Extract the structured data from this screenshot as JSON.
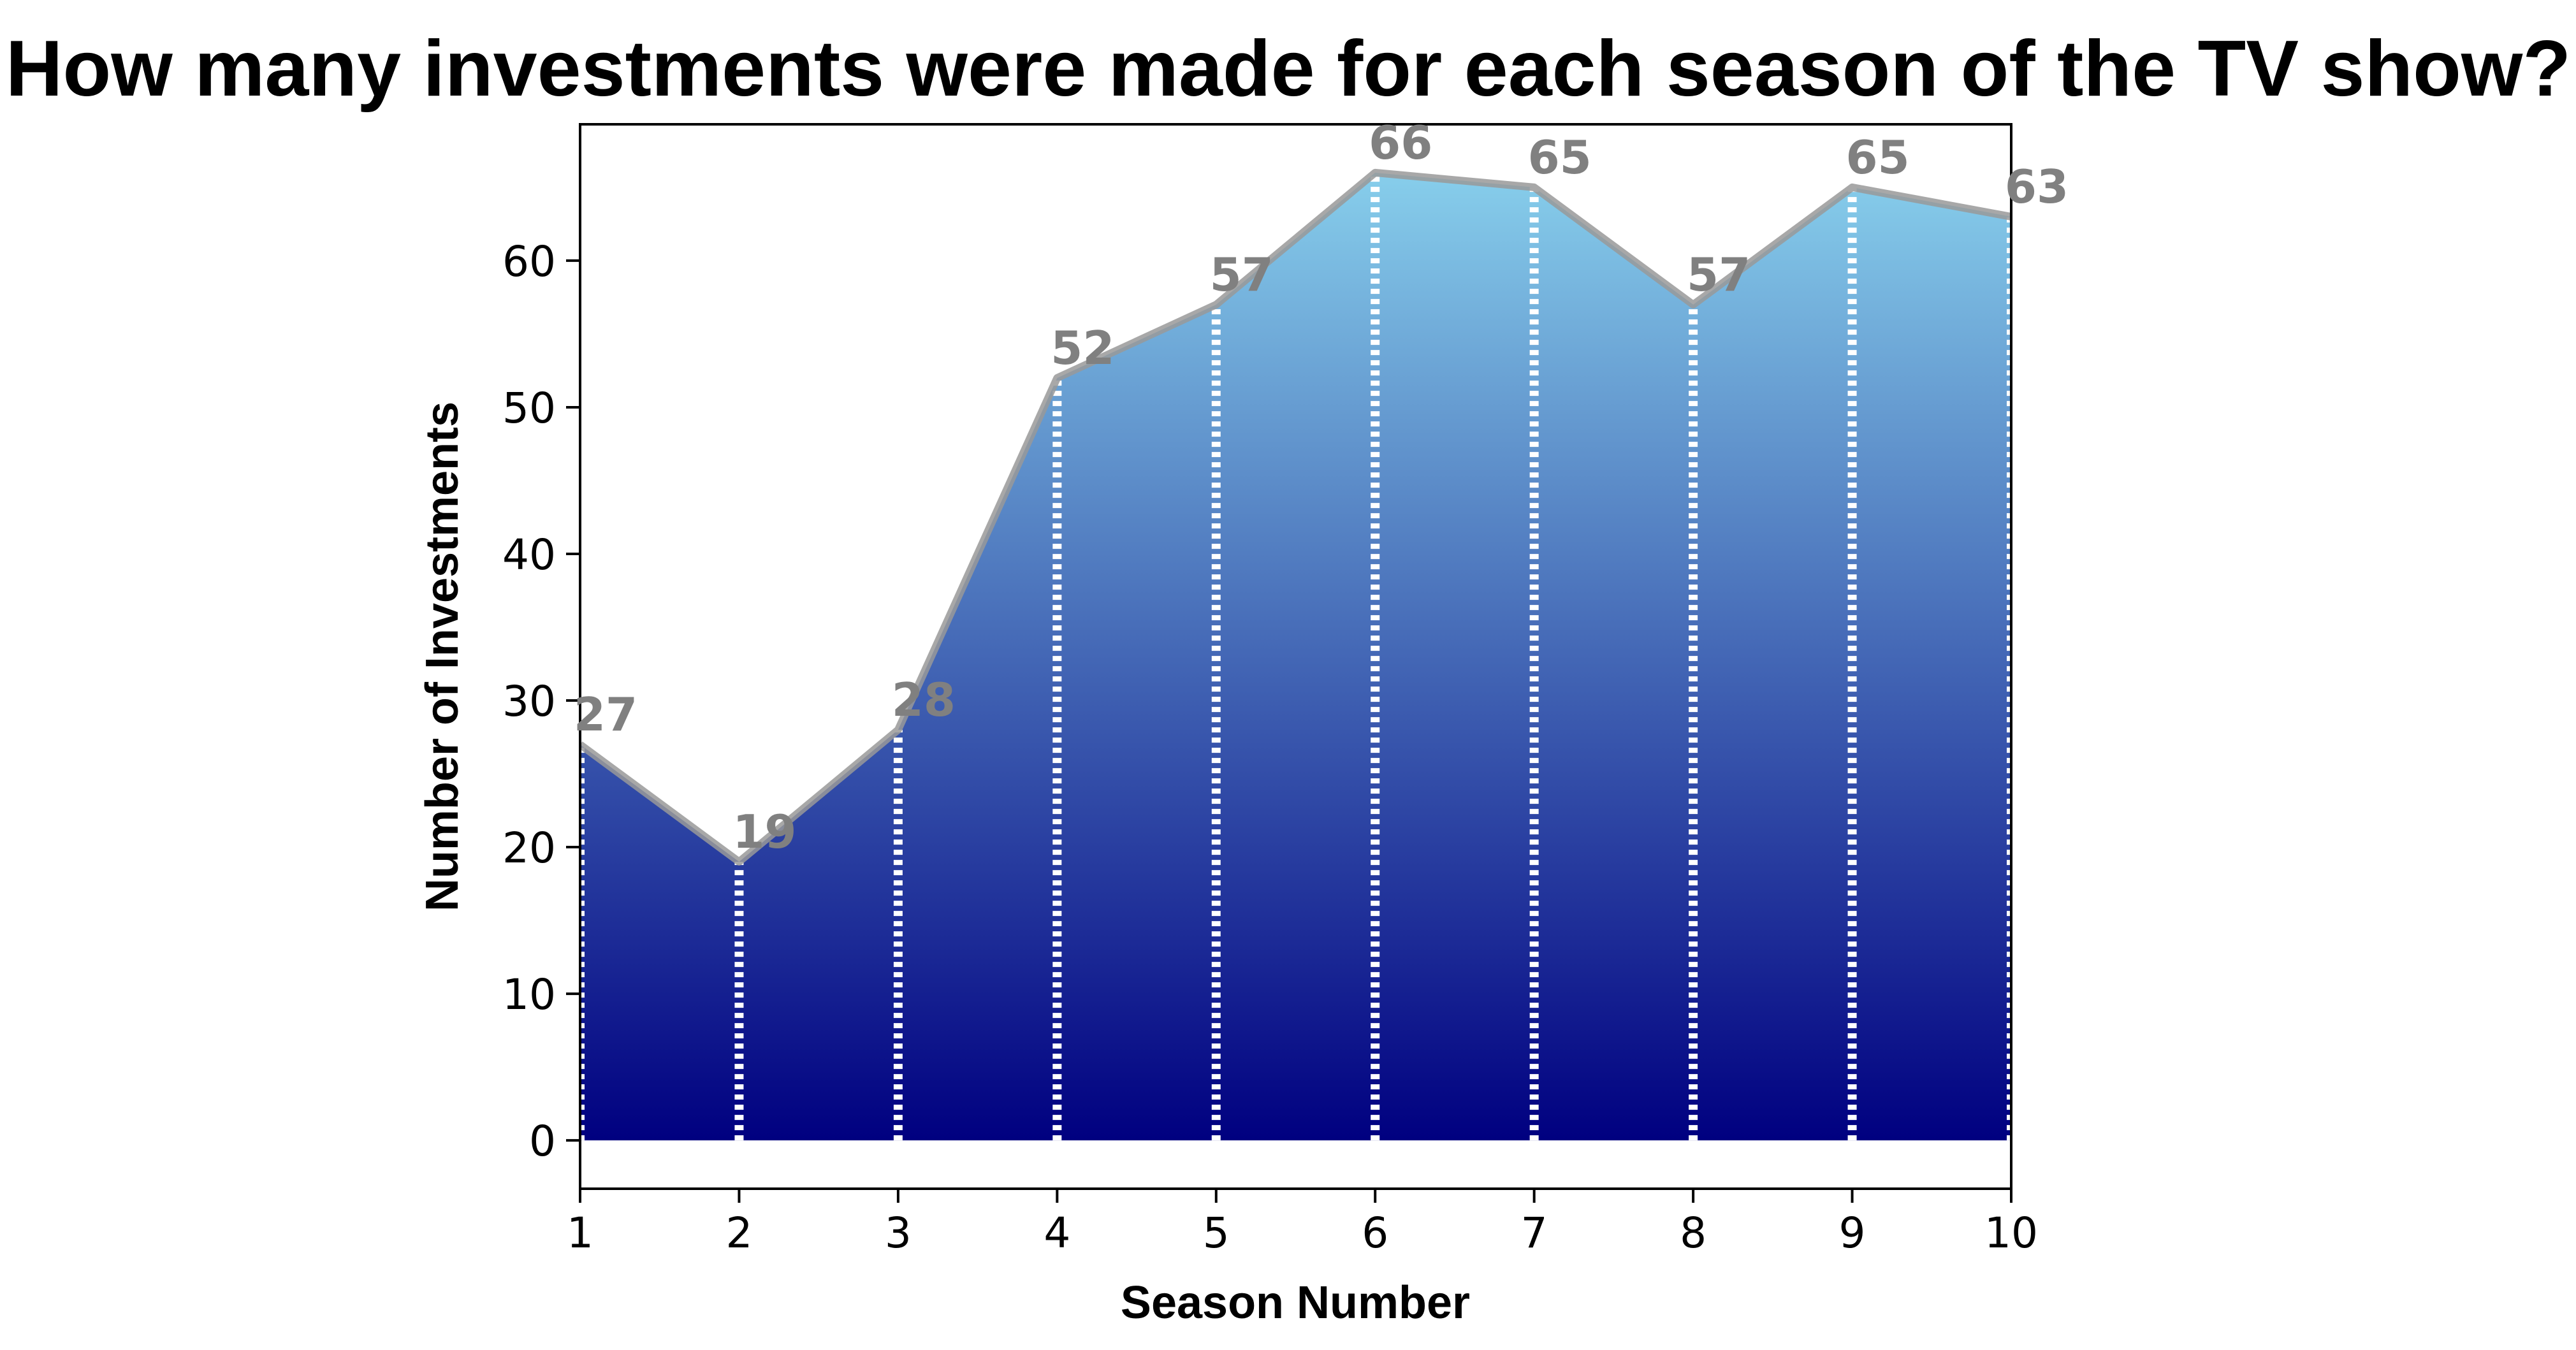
{
  "chart_data": {
    "type": "area",
    "title": "How many investments were made for each season of the TV show?",
    "xlabel": "Season Number",
    "ylabel": "Number of Investments",
    "x": [
      1,
      2,
      3,
      4,
      5,
      6,
      7,
      8,
      9,
      10
    ],
    "values": [
      27,
      19,
      28,
      52,
      57,
      66,
      65,
      57,
      65,
      63
    ],
    "xlim": [
      1,
      10
    ],
    "ylim": [
      -3.3,
      69.3
    ],
    "xticks": [
      "1",
      "2",
      "3",
      "4",
      "5",
      "6",
      "7",
      "8",
      "9",
      "10"
    ],
    "yticks": [
      "0",
      "10",
      "20",
      "30",
      "40",
      "50",
      "60"
    ],
    "grid": false,
    "legend": "none",
    "data_labels": [
      "27",
      "19",
      "28",
      "52",
      "57",
      "66",
      "65",
      "57",
      "65",
      "63"
    ],
    "colors": {
      "fill_top": "#87CEEB",
      "fill_bottom": "#000080",
      "line": "#999999",
      "label": "#808080",
      "droplines": "#ffffff"
    }
  }
}
